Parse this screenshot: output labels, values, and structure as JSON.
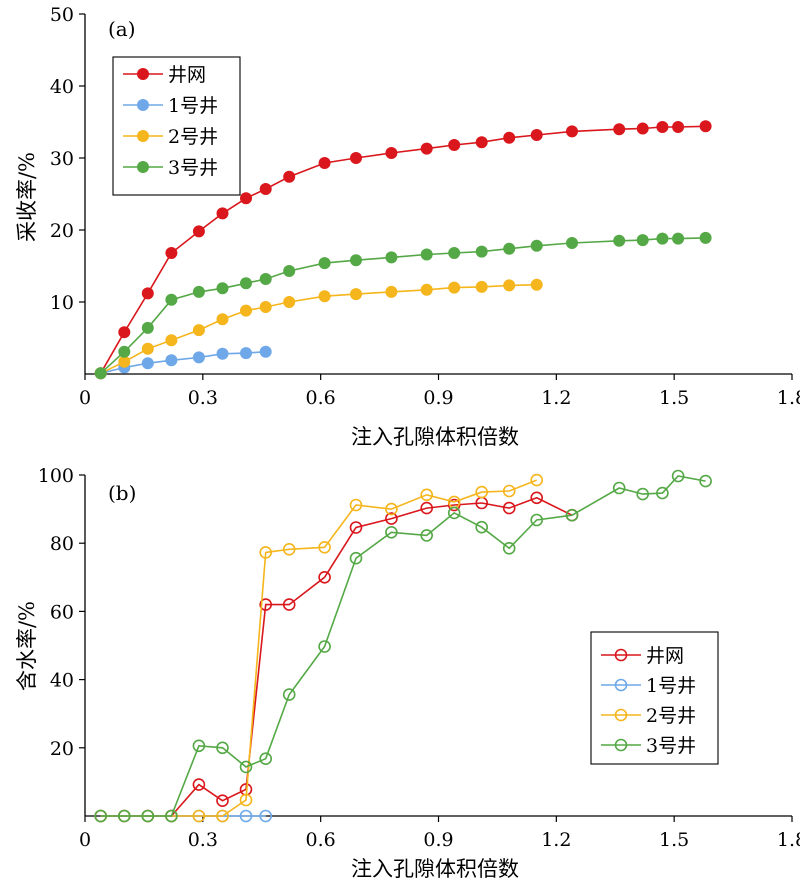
{
  "chart_data": [
    {
      "type": "line",
      "panel_label": "(a)",
      "xlabel": "注入孔隙体积倍数",
      "ylabel": "采收率/%",
      "xlim": [
        0,
        1.8
      ],
      "ylim": [
        0,
        50
      ],
      "xticks": [
        "0",
        "0.3",
        "0.6",
        "0.9",
        "1.2",
        "1.5",
        "1.8"
      ],
      "xtick_values": [
        0,
        0.3,
        0.6,
        0.9,
        1.2,
        1.5,
        1.8
      ],
      "yticks": [
        "10",
        "20",
        "30",
        "40",
        "50"
      ],
      "ytick_values": [
        10,
        20,
        30,
        40,
        50
      ],
      "marker": "filled",
      "legend_position": "top-left",
      "series": [
        {
          "name": "井网",
          "color": "#d9171c",
          "x": [
            0.04,
            0.1,
            0.16,
            0.22,
            0.29,
            0.35,
            0.41,
            0.46,
            0.52,
            0.61,
            0.69,
            0.78,
            0.87,
            0.94,
            1.01,
            1.08,
            1.15,
            1.24,
            1.36,
            1.42,
            1.47,
            1.51,
            1.58
          ],
          "y": [
            0.1,
            5.8,
            11.2,
            16.8,
            19.8,
            22.3,
            24.4,
            25.7,
            27.4,
            29.3,
            30.0,
            30.7,
            31.3,
            31.8,
            32.2,
            32.8,
            33.2,
            33.7,
            34.0,
            34.1,
            34.3,
            34.3,
            34.4
          ]
        },
        {
          "name": "1号井",
          "color": "#6fa8e8",
          "x": [
            0.04,
            0.1,
            0.16,
            0.22,
            0.29,
            0.35,
            0.41,
            0.46
          ],
          "y": [
            0.1,
            0.9,
            1.5,
            1.9,
            2.3,
            2.8,
            2.9,
            3.1
          ]
        },
        {
          "name": "2号井",
          "color": "#f5b51c",
          "x": [
            0.04,
            0.1,
            0.16,
            0.22,
            0.29,
            0.35,
            0.41,
            0.46,
            0.52,
            0.61,
            0.69,
            0.78,
            0.87,
            0.94,
            1.01,
            1.08,
            1.15
          ],
          "y": [
            0.1,
            1.7,
            3.5,
            4.7,
            6.1,
            7.6,
            8.8,
            9.3,
            10.0,
            10.8,
            11.1,
            11.4,
            11.7,
            12.0,
            12.1,
            12.3,
            12.4
          ]
        },
        {
          "name": "3号井",
          "color": "#54a845",
          "x": [
            0.04,
            0.1,
            0.16,
            0.22,
            0.29,
            0.35,
            0.41,
            0.46,
            0.52,
            0.61,
            0.69,
            0.78,
            0.87,
            0.94,
            1.01,
            1.08,
            1.15,
            1.24,
            1.36,
            1.42,
            1.47,
            1.51,
            1.58
          ],
          "y": [
            0.1,
            3.1,
            6.4,
            10.3,
            11.4,
            11.9,
            12.6,
            13.2,
            14.3,
            15.4,
            15.8,
            16.2,
            16.6,
            16.8,
            17.0,
            17.4,
            17.8,
            18.2,
            18.5,
            18.6,
            18.8,
            18.8,
            18.9
          ]
        }
      ]
    },
    {
      "type": "line",
      "panel_label": "(b)",
      "xlabel": "注入孔隙体积倍数",
      "ylabel": "含水率/%",
      "xlim": [
        0,
        1.8
      ],
      "ylim": [
        0,
        100
      ],
      "xticks": [
        "0",
        "0.3",
        "0.6",
        "0.9",
        "1.2",
        "1.5",
        "1.8"
      ],
      "xtick_values": [
        0,
        0.3,
        0.6,
        0.9,
        1.2,
        1.5,
        1.8
      ],
      "yticks": [
        "20",
        "40",
        "60",
        "80",
        "100"
      ],
      "ytick_values": [
        20,
        40,
        60,
        80,
        100
      ],
      "marker": "hollow",
      "legend_position": "bottom-right",
      "series": [
        {
          "name": "井网",
          "color": "#d9171c",
          "x": [
            0.04,
            0.1,
            0.16,
            0.22,
            0.29,
            0.35,
            0.41,
            0.46,
            0.52,
            0.61,
            0.69,
            0.78,
            0.87,
            0.94,
            1.01,
            1.08,
            1.15,
            1.24
          ],
          "y": [
            0,
            0,
            0,
            0,
            9.2,
            4.5,
            7.8,
            62.0,
            62.0,
            70.0,
            84.6,
            87.2,
            90.3,
            91.2,
            91.8,
            90.3,
            93.3,
            88.2
          ]
        },
        {
          "name": "1号井",
          "color": "#6fa8e8",
          "x": [
            0.04,
            0.1,
            0.16,
            0.22,
            0.29,
            0.35,
            0.41,
            0.46
          ],
          "y": [
            0,
            0,
            0,
            0,
            0,
            0,
            0,
            0
          ]
        },
        {
          "name": "2号井",
          "color": "#f5b51c",
          "x": [
            0.04,
            0.1,
            0.16,
            0.22,
            0.29,
            0.35,
            0.41,
            0.46,
            0.52,
            0.61,
            0.69,
            0.78,
            0.87,
            0.94,
            1.01,
            1.08,
            1.15
          ],
          "y": [
            0,
            0,
            0,
            0,
            0,
            0,
            4.7,
            77.3,
            78.2,
            78.8,
            91.2,
            90.0,
            94.2,
            92.1,
            95.0,
            95.3,
            98.5
          ]
        },
        {
          "name": "3号井",
          "color": "#54a845",
          "x": [
            0.04,
            0.1,
            0.16,
            0.22,
            0.29,
            0.35,
            0.41,
            0.46,
            0.52,
            0.61,
            0.69,
            0.78,
            0.87,
            0.94,
            1.01,
            1.08,
            1.15,
            1.24,
            1.36,
            1.42,
            1.47,
            1.51,
            1.58
          ],
          "y": [
            0,
            0,
            0,
            0,
            20.6,
            20.0,
            14.4,
            16.8,
            35.6,
            49.7,
            75.6,
            83.2,
            82.3,
            88.9,
            84.7,
            78.5,
            86.8,
            88.2,
            96.2,
            94.4,
            94.7,
            99.7,
            98.2
          ]
        }
      ]
    }
  ]
}
